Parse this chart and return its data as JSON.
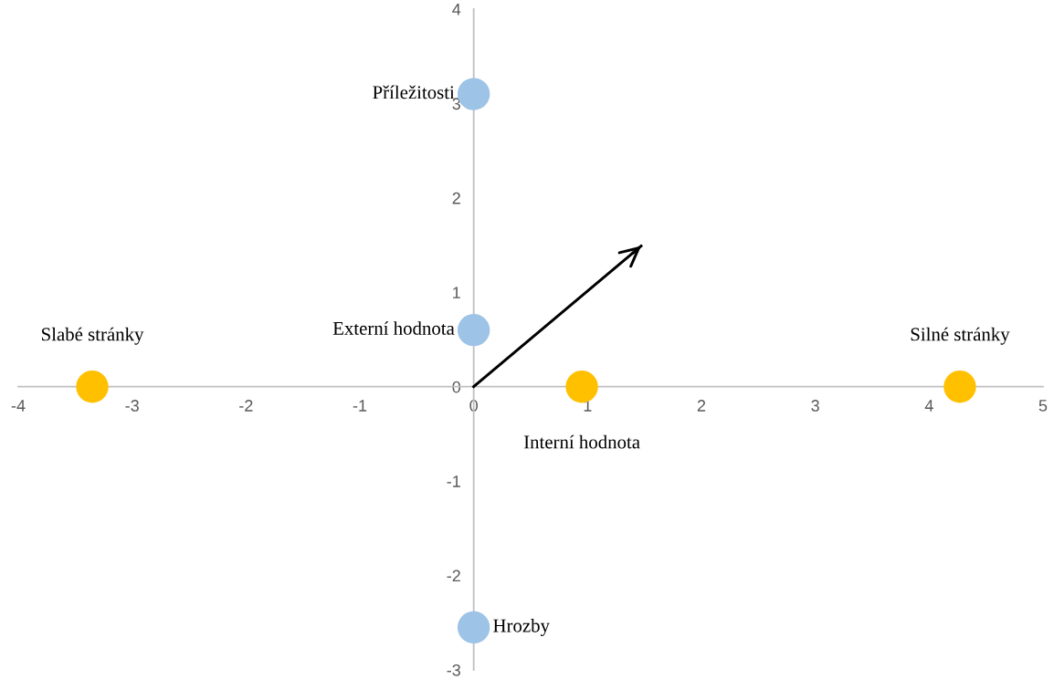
{
  "chart_data": {
    "type": "scatter",
    "xlim": [
      -4,
      5
    ],
    "ylim": [
      -3,
      4
    ],
    "xticks": [
      -4,
      -3,
      -2,
      -1,
      0,
      1,
      2,
      3,
      4,
      5
    ],
    "yticks": [
      -3,
      -2,
      -1,
      0,
      1,
      2,
      3,
      4
    ],
    "grid": false,
    "marker": "circle",
    "series": [
      {
        "color": "#ffc000",
        "x": [
          -3.35,
          0.95,
          4.27
        ],
        "values": [
          0,
          0,
          0
        ],
        "value_labels": [
          "Slabé stránky",
          "Interní hodnota",
          "Silné stránky"
        ]
      },
      {
        "color": "#9dc3e6",
        "x": [
          0,
          0,
          0
        ],
        "values": [
          3.1,
          0.6,
          -2.55
        ],
        "value_labels": [
          "Příležitosti",
          "Externí hodnota",
          "Hrozby"
        ]
      },
      {
        "type": "line",
        "color": "#000000",
        "x": [
          0,
          1.47
        ],
        "values": [
          0,
          1.49
        ],
        "marker": "none"
      }
    ]
  }
}
